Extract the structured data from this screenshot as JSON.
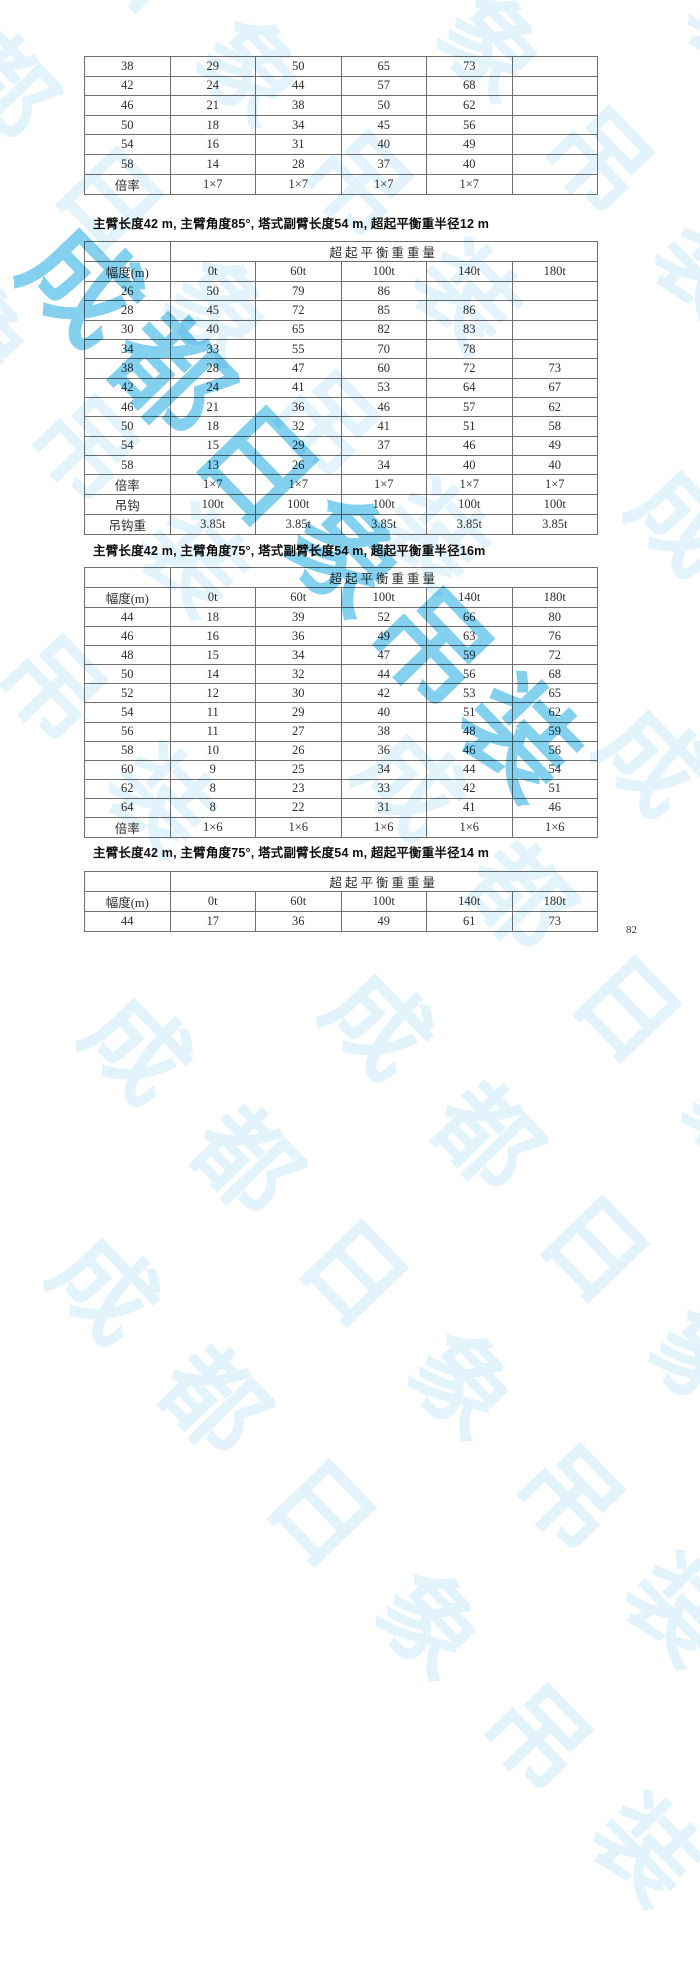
{
  "page": {
    "number": "82"
  },
  "watermark": {
    "text": "成都日象吊装",
    "tile_text": "成都日象吊装",
    "color": "#5fc8ee"
  },
  "table1": {
    "rows": [
      [
        "38",
        "29",
        "50",
        "65",
        "73",
        ""
      ],
      [
        "42",
        "24",
        "44",
        "57",
        "68",
        ""
      ],
      [
        "46",
        "21",
        "38",
        "50",
        "62",
        ""
      ],
      [
        "50",
        "18",
        "34",
        "45",
        "56",
        ""
      ],
      [
        "54",
        "16",
        "31",
        "40",
        "49",
        ""
      ],
      [
        "58",
        "14",
        "28",
        "37",
        "40",
        ""
      ],
      [
        "倍率",
        "1×7",
        "1×7",
        "1×7",
        "1×7",
        ""
      ]
    ]
  },
  "section1": {
    "heading": "主臂长度42 m, 主臂角度85°, 塔式副臂长度54 m, 超起平衡重半径12 m",
    "table": {
      "span_header": "超起平衡重重量",
      "columns": [
        "幅度(m)",
        "0t",
        "60t",
        "100t",
        "140t",
        "180t"
      ],
      "rows": [
        [
          "26",
          "50",
          "79",
          "86",
          "",
          ""
        ],
        [
          "28",
          "45",
          "72",
          "85",
          "86",
          ""
        ],
        [
          "30",
          "40",
          "65",
          "82",
          "83",
          ""
        ],
        [
          "34",
          "33",
          "55",
          "70",
          "78",
          ""
        ],
        [
          "38",
          "28",
          "47",
          "60",
          "72",
          "73"
        ],
        [
          "42",
          "24",
          "41",
          "53",
          "64",
          "67"
        ],
        [
          "46",
          "21",
          "36",
          "46",
          "57",
          "62"
        ],
        [
          "50",
          "18",
          "32",
          "41",
          "51",
          "58"
        ],
        [
          "54",
          "15",
          "29",
          "37",
          "46",
          "49"
        ],
        [
          "58",
          "13",
          "26",
          "34",
          "40",
          "40"
        ],
        [
          "倍率",
          "1×7",
          "1×7",
          "1×7",
          "1×7",
          "1×7"
        ],
        [
          "吊钩",
          "100t",
          "100t",
          "100t",
          "100t",
          "100t"
        ],
        [
          "吊钩重",
          "3.85t",
          "3.85t",
          "3.85t",
          "3.85t",
          "3.85t"
        ]
      ]
    }
  },
  "section2": {
    "heading": "主臂长度42 m, 主臂角度75°, 塔式副臂长度54 m, 超起平衡重半径16m",
    "table": {
      "span_header": "超起平衡重重量",
      "columns": [
        "幅度(m)",
        "0t",
        "60t",
        "100t",
        "140t",
        "180t"
      ],
      "rows": [
        [
          "44",
          "18",
          "39",
          "52",
          "66",
          "80"
        ],
        [
          "46",
          "16",
          "36",
          "49",
          "63",
          "76"
        ],
        [
          "48",
          "15",
          "34",
          "47",
          "59",
          "72"
        ],
        [
          "50",
          "14",
          "32",
          "44",
          "56",
          "68"
        ],
        [
          "52",
          "12",
          "30",
          "42",
          "53",
          "65"
        ],
        [
          "54",
          "11",
          "29",
          "40",
          "51",
          "62"
        ],
        [
          "56",
          "11",
          "27",
          "38",
          "48",
          "59"
        ],
        [
          "58",
          "10",
          "26",
          "36",
          "46",
          "56"
        ],
        [
          "60",
          "9",
          "25",
          "34",
          "44",
          "54"
        ],
        [
          "62",
          "8",
          "23",
          "33",
          "42",
          "51"
        ],
        [
          "64",
          "8",
          "22",
          "31",
          "41",
          "46"
        ],
        [
          "倍率",
          "1×6",
          "1×6",
          "1×6",
          "1×6",
          "1×6"
        ]
      ]
    }
  },
  "section3": {
    "heading": "主臂长度42 m, 主臂角度75°, 塔式副臂长度54 m, 超起平衡重半径14 m",
    "table": {
      "span_header": "超起平衡重重量",
      "columns": [
        "幅度(m)",
        "0t",
        "60t",
        "100t",
        "140t",
        "180t"
      ],
      "rows": [
        [
          "44",
          "17",
          "36",
          "49",
          "61",
          "73"
        ]
      ]
    }
  }
}
